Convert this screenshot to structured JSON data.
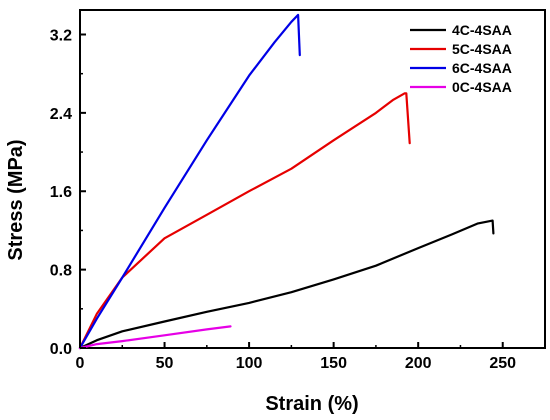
{
  "chart_data": {
    "type": "line",
    "xlabel": "Strain (%)",
    "ylabel": "Stress (MPa)",
    "xlim": [
      0,
      275
    ],
    "ylim": [
      0,
      3.45
    ],
    "xticks": [
      0,
      50,
      100,
      150,
      200,
      250
    ],
    "yticks": [
      0.0,
      0.8,
      1.6,
      2.4,
      3.2
    ],
    "ytick_labels": [
      "0.0",
      "0.8",
      "1.6",
      "2.4",
      "3.2"
    ],
    "legend_position": "top-right",
    "grid": false,
    "series": [
      {
        "name": "4C-4SAA",
        "color": "#000000",
        "x": [
          0,
          10,
          25,
          50,
          75,
          100,
          125,
          150,
          175,
          200,
          220,
          235,
          244,
          244.5
        ],
        "y": [
          0,
          0.08,
          0.17,
          0.27,
          0.37,
          0.46,
          0.57,
          0.7,
          0.84,
          1.02,
          1.16,
          1.27,
          1.3,
          1.17
        ]
      },
      {
        "name": "5C-4SAA",
        "color": "#e60000",
        "x": [
          0,
          10,
          25,
          50,
          75,
          100,
          125,
          150,
          175,
          185,
          192,
          193,
          195
        ],
        "y": [
          0,
          0.35,
          0.72,
          1.12,
          1.36,
          1.6,
          1.83,
          2.12,
          2.4,
          2.53,
          2.6,
          2.6,
          2.09
        ]
      },
      {
        "name": "6C-4SAA",
        "color": "#0000e6",
        "x": [
          0,
          10,
          25,
          50,
          75,
          100,
          115,
          125,
          129,
          130
        ],
        "y": [
          0,
          0.3,
          0.72,
          1.43,
          2.12,
          2.78,
          3.12,
          3.33,
          3.4,
          2.99
        ]
      },
      {
        "name": "0C-4SAA",
        "color": "#e600e6",
        "x": [
          0,
          10,
          25,
          50,
          75,
          89
        ],
        "y": [
          0,
          0.04,
          0.07,
          0.13,
          0.19,
          0.22
        ]
      }
    ]
  }
}
